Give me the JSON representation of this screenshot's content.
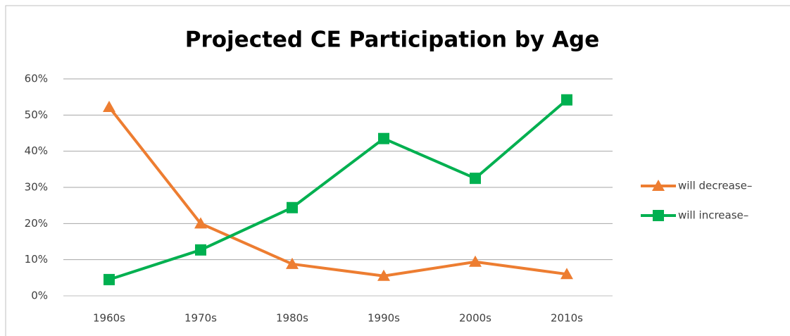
{
  "chart_data": {
    "type": "line",
    "title": "Projected CE Participation by Age",
    "categories": [
      "1960s",
      "1970s",
      "1980s",
      "1990s",
      "2000s",
      "2010s"
    ],
    "series": [
      {
        "name": "will decrease–",
        "color": "#ed7d31",
        "marker": "triangle",
        "values": [
          52.2,
          20,
          8.8,
          5.5,
          9.4,
          6
        ]
      },
      {
        "name": "will increase–",
        "color": "#00b050",
        "marker": "square",
        "values": [
          4.5,
          12.7,
          24.4,
          43.5,
          32.5,
          54.2
        ]
      }
    ],
    "ylim": [
      0,
      60
    ],
    "yticks": [
      {
        "value": 0,
        "label": "0%"
      },
      {
        "value": 10,
        "label": "10%"
      },
      {
        "value": 20,
        "label": "20%"
      },
      {
        "value": 30,
        "label": "30%"
      },
      {
        "value": 40,
        "label": "40%"
      },
      {
        "value": 50,
        "label": "50%"
      },
      {
        "value": 60,
        "label": "60%"
      }
    ],
    "grid": true,
    "legend": "right"
  }
}
